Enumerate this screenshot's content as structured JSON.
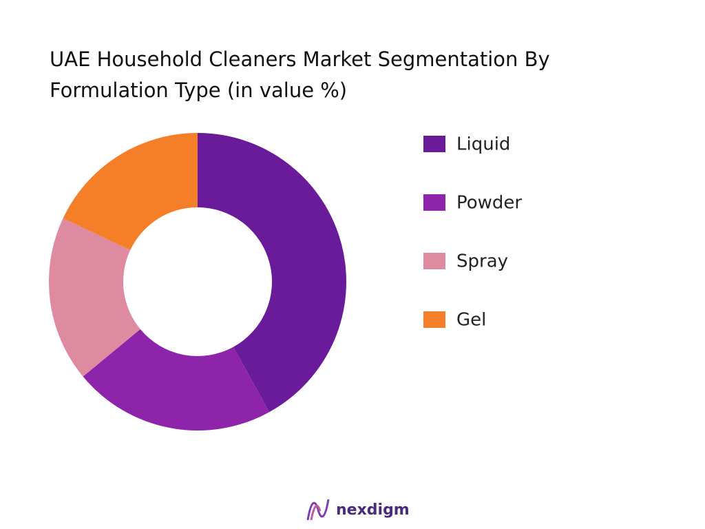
{
  "chart_data": {
    "type": "donut",
    "title": "UAE Household Cleaners Market Segmentation By Formulation Type (in value %)",
    "categories": [
      "Liquid",
      "Powder",
      "Spray",
      "Gel"
    ],
    "values": [
      42,
      22,
      18,
      18
    ],
    "colors": [
      "#6a1b9a",
      "#8e24aa",
      "#de8aa0",
      "#f57f29"
    ],
    "logo": "nexdigm"
  }
}
